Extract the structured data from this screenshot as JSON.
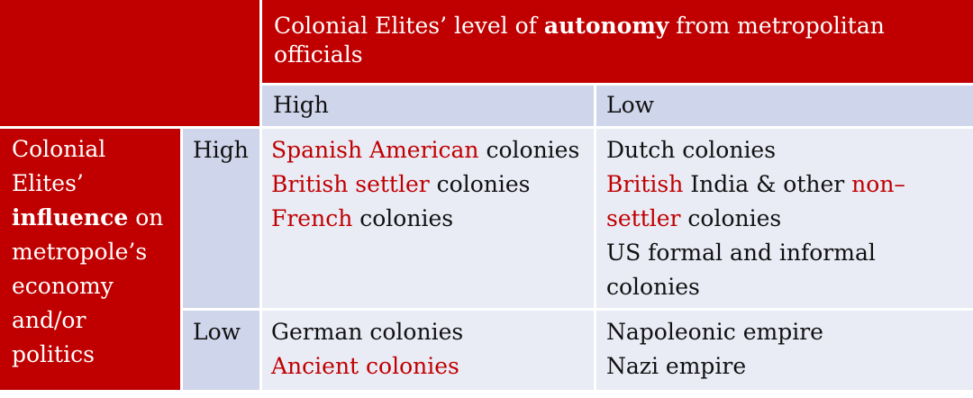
{
  "header": {
    "col_title_pre": "Colonial Elites’ level of ",
    "col_title_bold": "autonomy",
    "col_title_post": " from metropolitan",
    "col_title_line2": "officials",
    "col_high": "High",
    "col_low": "Low"
  },
  "row_header": {
    "line1": "Colonial",
    "line2": "Elites’",
    "line3_bold": "influence",
    "line3_post": " on",
    "line4": "metropole’s",
    "line5": "economy",
    "line6": "and/or",
    "line7": "politics",
    "row_high": "High",
    "row_low": "Low"
  },
  "cells": {
    "high_high": {
      "l1_red": "Spanish American",
      "l1_rest": " colonies",
      "l2_red": "British settler",
      "l2_rest": " colonies",
      "l3_red": "French",
      "l3_rest": " colonies"
    },
    "high_low": {
      "l1": "Dutch colonies",
      "l2_red": "British",
      "l2_mid": " India & other ",
      "l2_red2": "non–",
      "l3_red": "settler",
      "l3_rest": " colonies",
      "l4": "US formal and informal",
      "l5": "colonies"
    },
    "low_high": {
      "l1": "German colonies",
      "l2_red": "Ancient colonies"
    },
    "low_low": {
      "l1": "Napoleonic empire",
      "l2": "Nazi empire"
    }
  },
  "colors": {
    "red": "#c00000",
    "blue": "#cfd5ea",
    "light": "#e9ebf5"
  }
}
